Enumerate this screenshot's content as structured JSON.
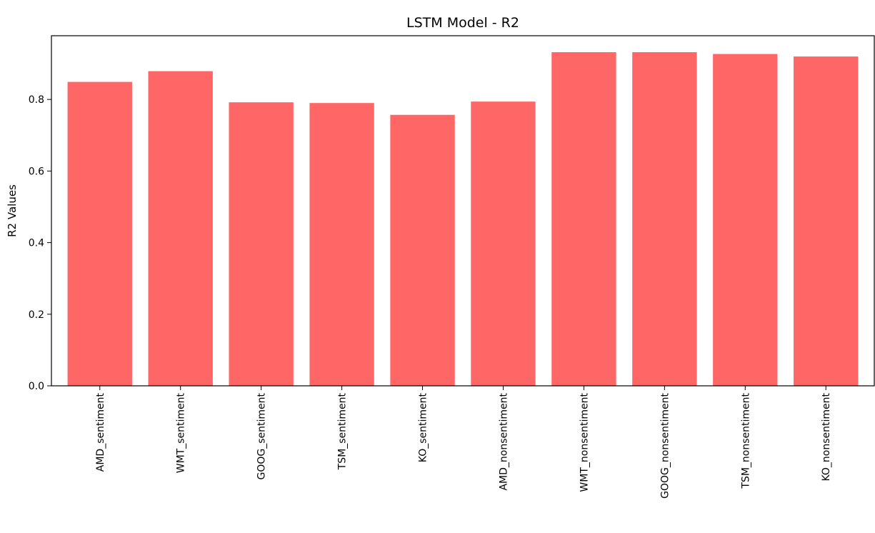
{
  "chart_data": {
    "type": "bar",
    "title": "LSTM Model - R2",
    "xlabel": "",
    "ylabel": "R2 Values",
    "categories": [
      "AMD_sentiment",
      "WMT_sentiment",
      "GOOG_sentiment",
      "TSM_sentiment",
      "KO_sentiment",
      "AMD_nonsentiment",
      "WMT_nonsentiment",
      "GOOG_nonsentiment",
      "TSM_nonsentiment",
      "KO_nonsentiment"
    ],
    "values": [
      0.849,
      0.879,
      0.792,
      0.79,
      0.757,
      0.794,
      0.932,
      0.932,
      0.927,
      0.92
    ],
    "ylim": [
      0,
      0.978
    ],
    "yticks": [
      "0.0",
      "0.2",
      "0.4",
      "0.6",
      "0.8"
    ],
    "grid": false,
    "legend": "none",
    "bar_color": "#ff6666"
  }
}
